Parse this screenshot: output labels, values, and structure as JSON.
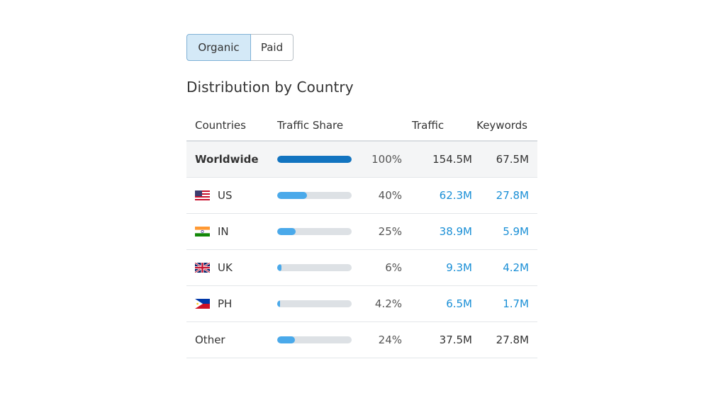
{
  "toggle": {
    "organic_label": "Organic",
    "paid_label": "Paid",
    "selected": "Organic"
  },
  "section_title": "Distribution by Country",
  "table": {
    "headers": {
      "countries": "Countries",
      "traffic_share": "Traffic Share",
      "traffic": "Traffic",
      "keywords": "Keywords"
    },
    "rows": [
      {
        "name": "Worldwide",
        "flag": null,
        "share_pct": "100%",
        "share_value": 100,
        "traffic": "154.5M",
        "keywords": "67.5M"
      },
      {
        "name": "US",
        "flag": "us-flag-icon",
        "share_pct": "40%",
        "share_value": 40,
        "traffic": "62.3M",
        "keywords": "27.8M"
      },
      {
        "name": "IN",
        "flag": "india-flag-icon",
        "share_pct": "25%",
        "share_value": 25,
        "traffic": "38.9M",
        "keywords": "5.9M"
      },
      {
        "name": "UK",
        "flag": "uk-flag-icon",
        "share_pct": "6%",
        "share_value": 6,
        "traffic": "9.3M",
        "keywords": "4.2M"
      },
      {
        "name": "PH",
        "flag": "philippines-flag-icon",
        "share_pct": "4.2%",
        "share_value": 4.2,
        "traffic": "6.5M",
        "keywords": "1.7M"
      },
      {
        "name": "Other",
        "flag": null,
        "share_pct": "24%",
        "share_value": 24,
        "traffic": "37.5M",
        "keywords": "27.8M"
      }
    ]
  },
  "colors": {
    "bar_primary": "#1274c0",
    "bar_secondary": "#4aa9ea",
    "bar_track": "#dde1e5",
    "link": "#1a8fd6",
    "toggle_active_bg": "#d4e9f7"
  }
}
